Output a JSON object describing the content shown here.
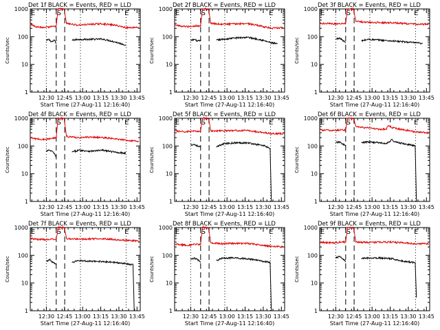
{
  "figure": {
    "x_axis_label": "Start Time (27-Aug-11 12:16:40)",
    "y_axis_label": "Counts/sec",
    "x_tick_labels": [
      "12:30",
      "12:45",
      "13:00",
      "13:15",
      "13:30",
      "13:45"
    ],
    "y_tick_labels": [
      "1",
      "10",
      "100",
      "1000"
    ],
    "marker_s": "S",
    "marker_e": "E",
    "colors": {
      "events": "#000000",
      "lld": "#e00000",
      "axes": "#000000",
      "background": "#ffffff"
    }
  },
  "chart_data": [
    {
      "type": "line",
      "title": "Det 1f BLACK = Events, RED = LLD",
      "x_unit": "minutes after 12:16:40 (27-Aug-11)",
      "xlim": [
        0,
        91
      ],
      "ylim": [
        1,
        1000
      ],
      "y_scale": "log",
      "vlines_dotted": [
        13.3,
        41.5,
        79.3
      ],
      "vlines_dashed": [
        21.5,
        28.5
      ],
      "marker_positions": [
        0.5,
        22,
        78
      ],
      "series": [
        {
          "name": "Events",
          "segments": [
            {
              "x": [
                13.3,
                15,
                18,
                20,
                21.5
              ],
              "y": [
                70,
                80,
                65,
                75,
                55
              ]
            },
            {
              "x": [
                34.5,
                40,
                50,
                60,
                70,
                79
              ],
              "y": [
                75,
                80,
                80,
                82,
                65,
                50
              ]
            }
          ]
        },
        {
          "name": "LLD",
          "segments": [
            {
              "x": [
                0,
                5,
                12,
                18,
                21.5,
                23,
                28,
                30,
                40,
                50,
                60,
                70,
                80,
                90
              ],
              "y": [
                280,
                230,
                210,
                230,
                240,
                1000,
                1000,
                300,
                260,
                280,
                290,
                260,
                210,
                220
              ]
            }
          ]
        }
      ]
    },
    {
      "type": "line",
      "title": "Det 2f BLACK = Events, RED = LLD",
      "x_unit": "minutes after 12:16:40 (27-Aug-11)",
      "xlim": [
        0,
        91
      ],
      "ylim": [
        1,
        1000
      ],
      "y_scale": "log",
      "vlines_dotted": [
        13.3,
        41.5,
        79.3
      ],
      "vlines_dashed": [
        21.5,
        28.5
      ],
      "marker_positions": [
        0.5,
        22,
        78
      ],
      "series": [
        {
          "name": "Events",
          "segments": [
            {
              "x": [
                13.3,
                16,
                19,
                21.5
              ],
              "y": [
                70,
                80,
                70,
                70
              ]
            },
            {
              "x": [
                34.5,
                40,
                50,
                60,
                70,
                80,
                85
              ],
              "y": [
                75,
                80,
                90,
                95,
                80,
                60,
                55
              ]
            }
          ]
        },
        {
          "name": "LLD",
          "segments": [
            {
              "x": [
                0,
                5,
                12,
                18,
                21.5,
                23,
                28,
                30,
                40,
                50,
                60,
                70,
                80,
                90
              ],
              "y": [
                260,
                240,
                230,
                250,
                240,
                1000,
                1000,
                300,
                280,
                290,
                300,
                250,
                200,
                210
              ]
            }
          ]
        }
      ]
    },
    {
      "type": "line",
      "title": "Det 3f BLACK = Events, RED = LLD",
      "x_unit": "minutes after 12:16:40 (27-Aug-11)",
      "xlim": [
        0,
        91
      ],
      "ylim": [
        1,
        1000
      ],
      "y_scale": "log",
      "vlines_dotted": [
        13.3,
        41.5,
        79.3
      ],
      "vlines_dashed": [
        21.5,
        28.5
      ],
      "marker_positions": [
        0.5,
        22,
        78
      ],
      "series": [
        {
          "name": "Events",
          "segments": [
            {
              "x": [
                13.3,
                16,
                19,
                21.5
              ],
              "y": [
                80,
                90,
                75,
                60
              ]
            },
            {
              "x": [
                34.5,
                40,
                50,
                60,
                70,
                80,
                85
              ],
              "y": [
                70,
                80,
                75,
                70,
                65,
                60,
                55
              ]
            }
          ]
        },
        {
          "name": "LLD",
          "segments": [
            {
              "x": [
                0,
                5,
                12,
                18,
                21.5,
                23,
                28,
                30,
                40,
                50,
                60,
                70,
                80,
                90
              ],
              "y": [
                300,
                300,
                290,
                300,
                300,
                1000,
                1000,
                350,
                330,
                320,
                320,
                300,
                280,
                280
              ]
            }
          ]
        }
      ]
    },
    {
      "type": "line",
      "title": "Det 4f BLACK = Events, RED = LLD",
      "x_unit": "minutes after 12:16:40 (27-Aug-11)",
      "xlim": [
        0,
        91
      ],
      "ylim": [
        1,
        1000
      ],
      "y_scale": "log",
      "vlines_dotted": [
        13.3,
        41.5,
        79.3
      ],
      "vlines_dashed": [
        21.5,
        28.5
      ],
      "marker_positions": [
        0.5,
        22,
        78
      ],
      "series": [
        {
          "name": "Events",
          "segments": [
            {
              "x": [
                13.3,
                16,
                19,
                21.5
              ],
              "y": [
                65,
                70,
                60,
                40
              ]
            },
            {
              "x": [
                34.5,
                40,
                50,
                60,
                70,
                79
              ],
              "y": [
                60,
                70,
                65,
                70,
                60,
                55
              ]
            }
          ]
        },
        {
          "name": "LLD",
          "segments": [
            {
              "x": [
                0,
                5,
                12,
                18,
                21.5,
                23,
                28,
                30,
                40,
                50,
                60,
                70,
                80,
                90
              ],
              "y": [
                200,
                180,
                170,
                190,
                200,
                1000,
                1000,
                220,
                200,
                210,
                200,
                180,
                160,
                150
              ]
            }
          ]
        }
      ]
    },
    {
      "type": "line",
      "title": "Det 5f BLACK = Events, RED = LLD",
      "x_unit": "minutes after 12:16:40 (27-Aug-11)",
      "xlim": [
        0,
        91
      ],
      "ylim": [
        1,
        1000
      ],
      "y_scale": "log",
      "vlines_dotted": [
        13.3,
        41.5,
        79.3
      ],
      "vlines_dashed": [
        21.5,
        28.5
      ],
      "marker_positions": [
        0.5,
        22,
        78
      ],
      "series": [
        {
          "name": "Events",
          "segments": [
            {
              "x": [
                13.3,
                16,
                19,
                21.5
              ],
              "y": [
                110,
                115,
                100,
                90
              ]
            },
            {
              "x": [
                34.5,
                40,
                50,
                60,
                70,
                75,
                79,
                80
              ],
              "y": [
                90,
                120,
                130,
                130,
                110,
                100,
                80,
                1
              ]
            }
          ]
        },
        {
          "name": "LLD",
          "segments": [
            {
              "x": [
                0,
                5,
                12,
                18,
                21.5,
                23,
                28,
                30,
                40,
                50,
                60,
                70,
                80,
                90
              ],
              "y": [
                350,
                330,
                330,
                340,
                340,
                1000,
                1000,
                350,
                350,
                360,
                360,
                320,
                280,
                280
              ]
            }
          ]
        }
      ]
    },
    {
      "type": "line",
      "title": "Det 6f BLACK = Events, RED = LLD",
      "x_unit": "minutes after 12:16:40 (27-Aug-11)",
      "xlim": [
        0,
        91
      ],
      "ylim": [
        1,
        1000
      ],
      "y_scale": "log",
      "vlines_dotted": [
        13.3,
        41.5,
        79.3
      ],
      "vlines_dashed": [
        21.5,
        28.5
      ],
      "marker_positions": [
        0.5,
        22,
        78
      ],
      "series": [
        {
          "name": "Events",
          "segments": [
            {
              "x": [
                13.3,
                16,
                19,
                21.5
              ],
              "y": [
                130,
                140,
                120,
                100
              ]
            },
            {
              "x": [
                34.5,
                40,
                50,
                55,
                60,
                62,
                70,
                79,
                80
              ],
              "y": [
                130,
                140,
                130,
                120,
                170,
                140,
                120,
                100,
                1
              ]
            }
          ]
        },
        {
          "name": "LLD",
          "segments": [
            {
              "x": [
                0,
                5,
                12,
                18,
                21.5,
                23,
                28,
                30,
                40,
                50,
                55,
                57,
                60,
                70,
                80,
                90
              ],
              "y": [
                380,
                370,
                360,
                380,
                380,
                1000,
                1000,
                500,
                450,
                400,
                400,
                550,
                450,
                380,
                320,
                300
              ]
            }
          ]
        }
      ]
    },
    {
      "type": "line",
      "title": "Det 7f BLACK = Events, RED = LLD",
      "x_unit": "minutes after 12:16:40 (27-Aug-11)",
      "xlim": [
        0,
        91
      ],
      "ylim": [
        1,
        1000
      ],
      "y_scale": "log",
      "vlines_dotted": [
        13.3,
        41.5,
        79.3
      ],
      "vlines_dashed": [
        21.5,
        28.5
      ],
      "marker_positions": [
        0.5,
        22,
        78
      ],
      "series": [
        {
          "name": "Events",
          "segments": [
            {
              "x": [
                13.3,
                16,
                19,
                21.5
              ],
              "y": [
                60,
                70,
                55,
                45
              ]
            },
            {
              "x": [
                34.5,
                40,
                50,
                60,
                70,
                80,
                85,
                86
              ],
              "y": [
                55,
                65,
                60,
                60,
                55,
                50,
                45,
                1
              ]
            }
          ]
        },
        {
          "name": "LLD",
          "segments": [
            {
              "x": [
                0,
                5,
                12,
                18,
                21.5,
                23,
                28,
                30,
                40,
                50,
                60,
                70,
                80,
                90
              ],
              "y": [
                400,
                380,
                370,
                380,
                380,
                1000,
                1000,
                400,
                380,
                390,
                400,
                370,
                340,
                330
              ]
            }
          ]
        }
      ]
    },
    {
      "type": "line",
      "title": "Det 8f BLACK = Events, RED = LLD",
      "x_unit": "minutes after 12:16:40 (27-Aug-11)",
      "xlim": [
        0,
        91
      ],
      "ylim": [
        1,
        1000
      ],
      "y_scale": "log",
      "vlines_dotted": [
        13.3,
        41.5,
        79.3
      ],
      "vlines_dashed": [
        21.5,
        28.5
      ],
      "marker_positions": [
        0.5,
        22,
        78
      ],
      "series": [
        {
          "name": "Events",
          "segments": [
            {
              "x": [
                13.3,
                16,
                19,
                21.5
              ],
              "y": [
                70,
                80,
                70,
                55
              ]
            },
            {
              "x": [
                34.5,
                40,
                50,
                60,
                70,
                79,
                80
              ],
              "y": [
                65,
                80,
                80,
                75,
                65,
                55,
                1
              ]
            }
          ]
        },
        {
          "name": "LLD",
          "segments": [
            {
              "x": [
                0,
                5,
                12,
                18,
                21.5,
                23,
                28,
                30,
                40,
                50,
                60,
                70,
                80,
                90
              ],
              "y": [
                260,
                240,
                230,
                250,
                250,
                1000,
                1000,
                280,
                260,
                270,
                270,
                240,
                210,
                200
              ]
            }
          ]
        }
      ]
    },
    {
      "type": "line",
      "title": "Det 9f BLACK = Events, RED = LLD",
      "x_unit": "minutes after 12:16:40 (27-Aug-11)",
      "xlim": [
        0,
        91
      ],
      "ylim": [
        1,
        1000
      ],
      "y_scale": "log",
      "vlines_dotted": [
        13.3,
        41.5,
        79.3
      ],
      "vlines_dashed": [
        21.5,
        28.5
      ],
      "marker_positions": [
        0.5,
        22,
        78
      ],
      "series": [
        {
          "name": "Events",
          "segments": [
            {
              "x": [
                13.3,
                16,
                19,
                21.5
              ],
              "y": [
                80,
                90,
                75,
                60
              ]
            },
            {
              "x": [
                34.5,
                40,
                50,
                60,
                70,
                79,
                80
              ],
              "y": [
                75,
                80,
                80,
                75,
                60,
                55,
                3
              ]
            }
          ]
        },
        {
          "name": "LLD",
          "segments": [
            {
              "x": [
                0,
                5,
                12,
                18,
                21.5,
                23,
                28,
                30,
                40,
                50,
                60,
                70,
                80,
                90
              ],
              "y": [
                300,
                290,
                280,
                300,
                300,
                1000,
                1000,
                300,
                290,
                300,
                300,
                280,
                260,
                260
              ]
            }
          ]
        }
      ]
    }
  ]
}
